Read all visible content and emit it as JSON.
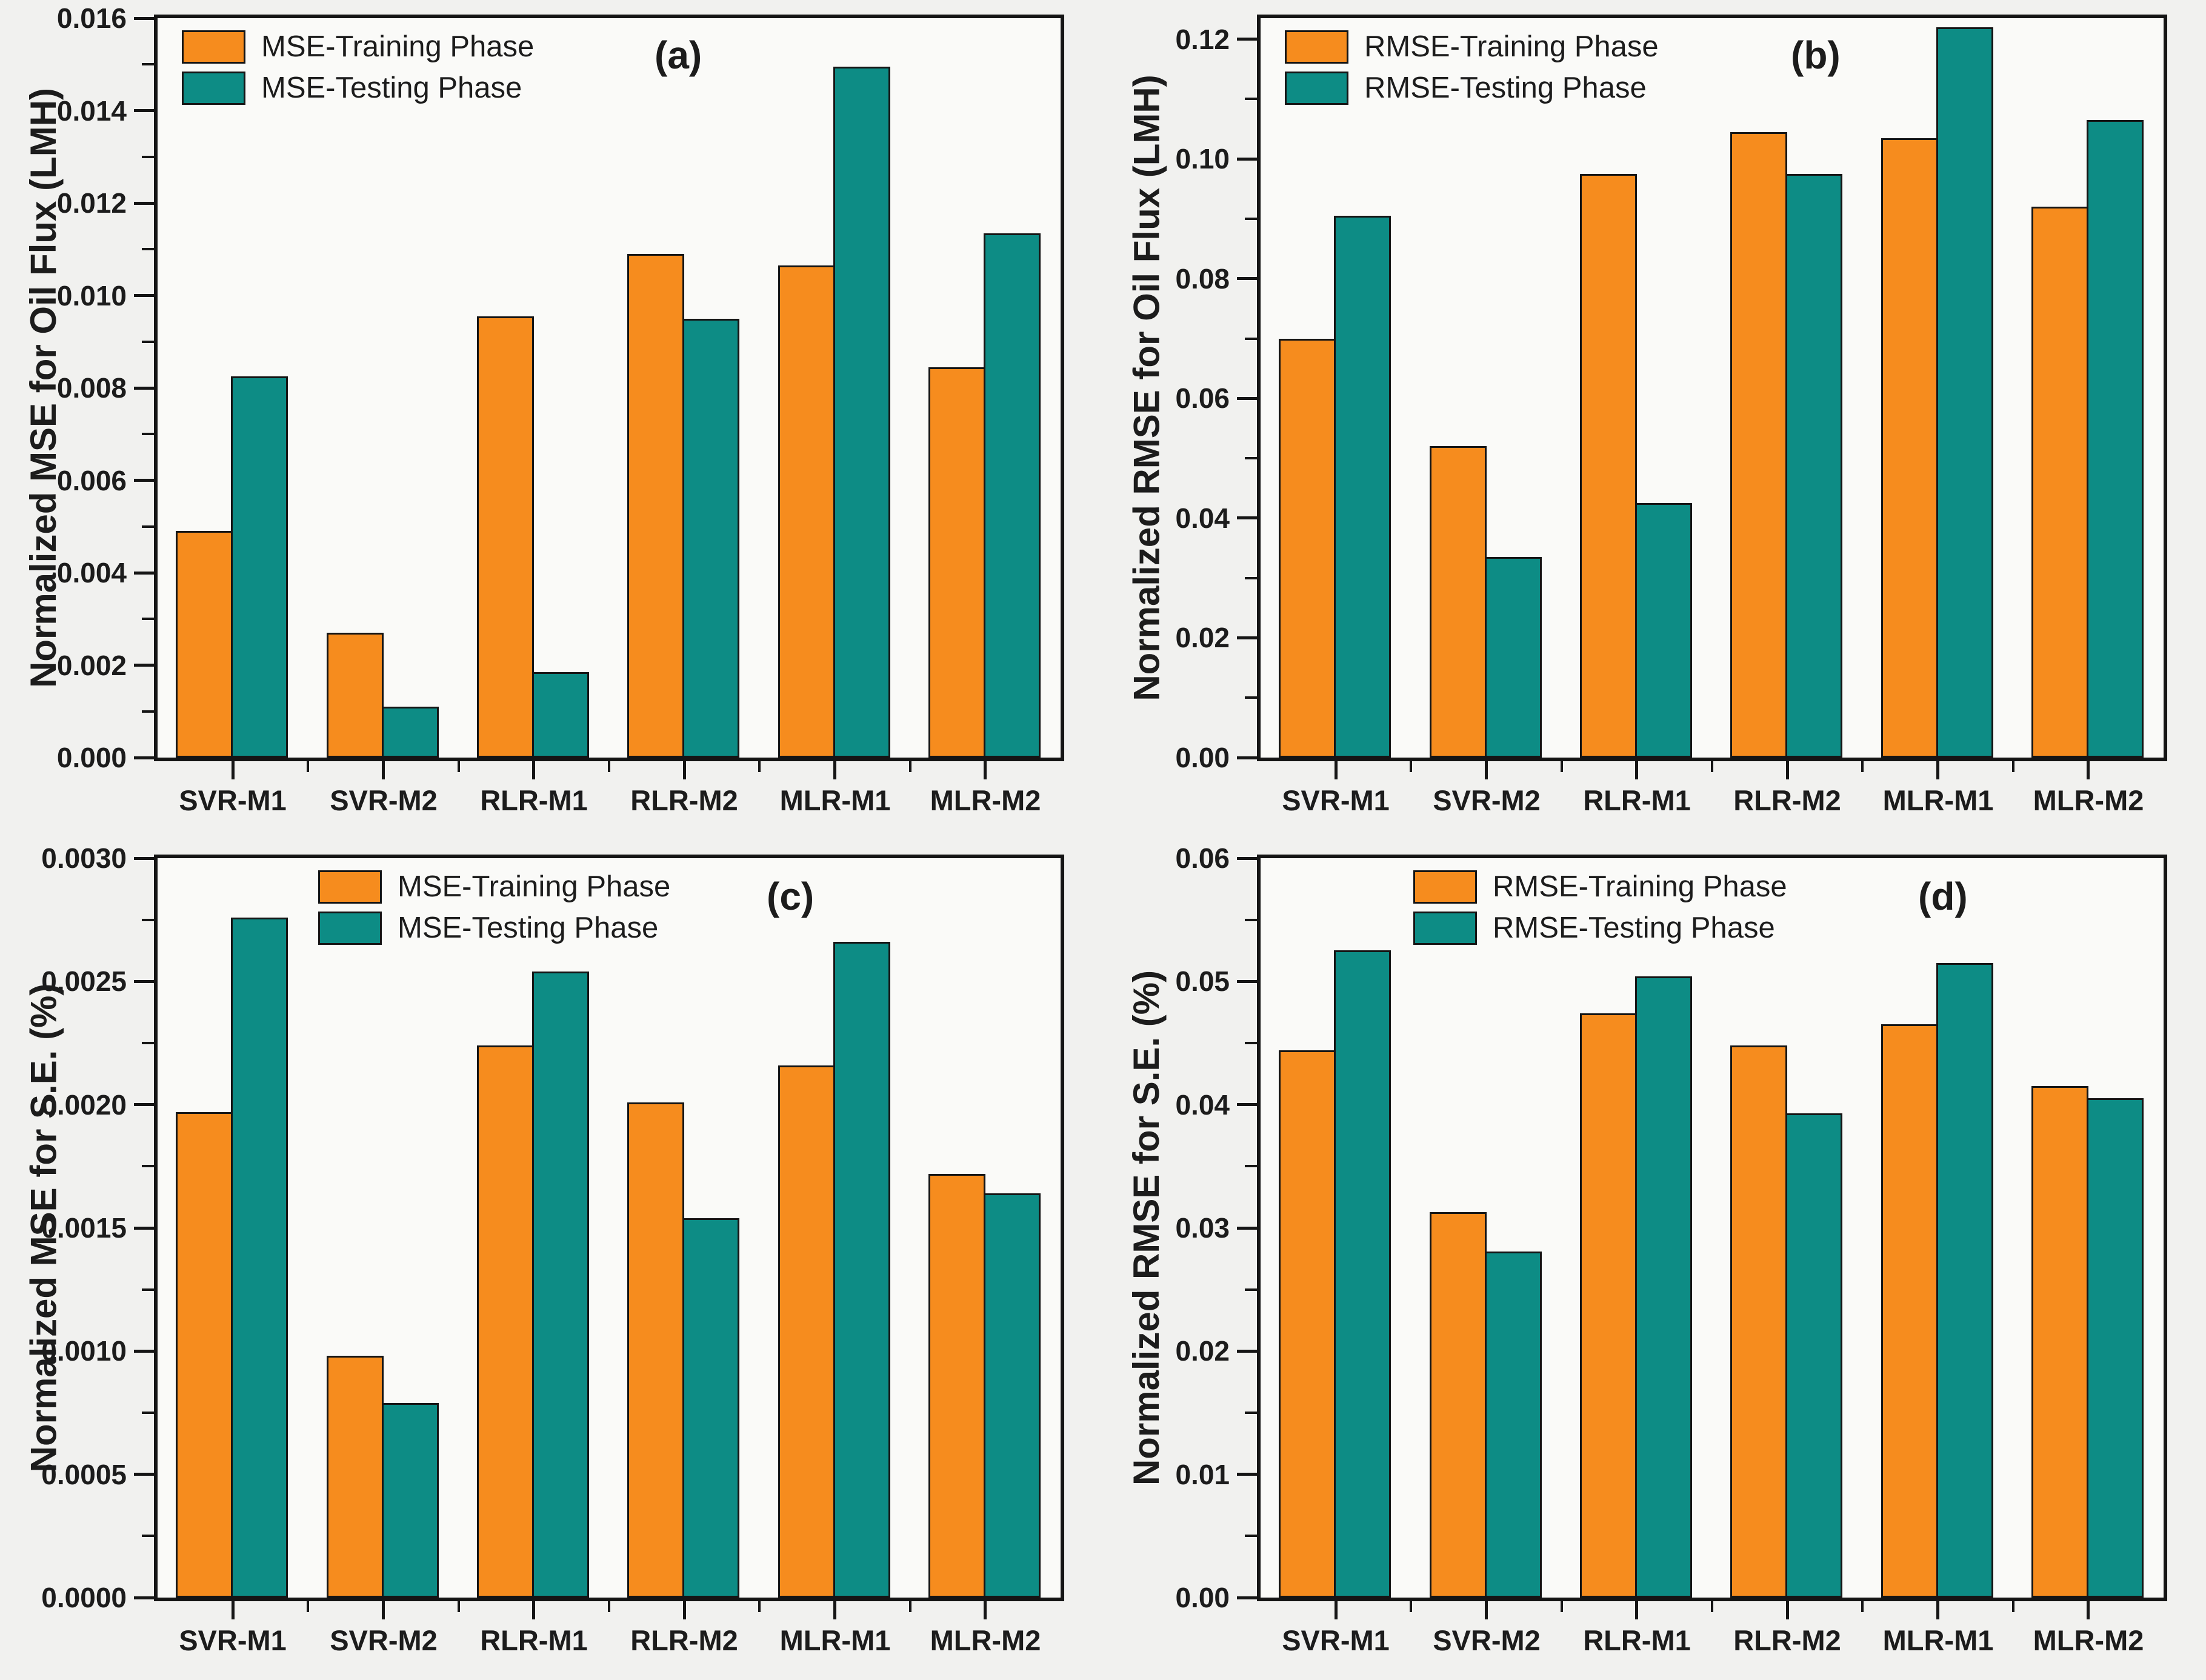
{
  "colors": {
    "training": "#F68C1E",
    "testing": "#0D8C85",
    "frame": "#151515",
    "text": "#1C1C1C",
    "page_bg": "#F1F1EF",
    "plot_bg": "#FAFAF8"
  },
  "chart_data": [
    {
      "type": "bar",
      "letter": "(a)",
      "ylabel": "Normalized MSE for Oil Flux (LMH)",
      "xlabel": "",
      "categories": [
        "SVR-M1",
        "SVR-M2",
        "RLR-M1",
        "RLR-M2",
        "MLR-M1",
        "MLR-M2"
      ],
      "series": [
        {
          "name": "MSE-Training Phase",
          "phase": "training",
          "values": [
            0.0049,
            0.0027,
            0.00955,
            0.0109,
            0.01065,
            0.00845
          ]
        },
        {
          "name": "MSE-Testing Phase",
          "phase": "testing",
          "values": [
            0.00825,
            0.0011,
            0.00185,
            0.0095,
            0.01495,
            0.01135
          ]
        }
      ],
      "ytick_labels": [
        "0.000",
        "0.002",
        "0.004",
        "0.006",
        "0.008",
        "0.010",
        "0.012",
        "0.014",
        "0.016"
      ],
      "ylim": [
        0,
        0.016
      ],
      "render_ymax": 0.016,
      "yminor_step": 0.001,
      "grid": false,
      "legend_position": "top-left"
    },
    {
      "type": "bar",
      "letter": "(b)",
      "ylabel": "Normalized RMSE for Oil Flux (LMH)",
      "xlabel": "",
      "categories": [
        "SVR-M1",
        "SVR-M2",
        "RLR-M1",
        "RLR-M2",
        "MLR-M1",
        "MLR-M2"
      ],
      "series": [
        {
          "name": "RMSE-Training Phase",
          "phase": "training",
          "values": [
            0.07,
            0.052,
            0.0975,
            0.1045,
            0.1035,
            0.092
          ]
        },
        {
          "name": "RMSE-Testing Phase",
          "phase": "testing",
          "values": [
            0.0905,
            0.0335,
            0.0425,
            0.0975,
            0.122,
            0.1065
          ]
        }
      ],
      "ytick_labels": [
        "0.00",
        "0.02",
        "0.04",
        "0.06",
        "0.08",
        "0.10",
        "0.12"
      ],
      "ylim": [
        0,
        0.12
      ],
      "render_ymax": 0.1235,
      "yminor_step": 0.01,
      "grid": false,
      "legend_position": "top-left"
    },
    {
      "type": "bar",
      "letter": "(c)",
      "ylabel": "Normalized MSE for S.E. (%)",
      "xlabel": "",
      "categories": [
        "SVR-M1",
        "SVR-M2",
        "RLR-M1",
        "RLR-M2",
        "MLR-M1",
        "MLR-M2"
      ],
      "series": [
        {
          "name": "MSE-Training Phase",
          "phase": "training",
          "values": [
            0.00197,
            0.00098,
            0.00224,
            0.00201,
            0.00216,
            0.00172
          ]
        },
        {
          "name": "MSE-Testing Phase",
          "phase": "testing",
          "values": [
            0.00276,
            0.00079,
            0.00254,
            0.00154,
            0.00266,
            0.00164
          ]
        }
      ],
      "ytick_labels": [
        "0.0000",
        "0.0005",
        "0.0010",
        "0.0015",
        "0.0020",
        "0.0025",
        "0.0030"
      ],
      "ylim": [
        0,
        0.003
      ],
      "render_ymax": 0.003,
      "yminor_step": 0.00025,
      "grid": false,
      "legend_position": "top-left-indented"
    },
    {
      "type": "bar",
      "letter": "(d)",
      "ylabel": "Normalized RMSE for S.E. (%)",
      "xlabel": "",
      "categories": [
        "SVR-M1",
        "SVR-M2",
        "RLR-M1",
        "RLR-M2",
        "MLR-M1",
        "MLR-M2"
      ],
      "series": [
        {
          "name": "RMSE-Training Phase",
          "phase": "training",
          "values": [
            0.0444,
            0.0313,
            0.0474,
            0.0448,
            0.0465,
            0.0415
          ]
        },
        {
          "name": "RMSE-Testing Phase",
          "phase": "testing",
          "values": [
            0.0525,
            0.0281,
            0.0504,
            0.0393,
            0.0515,
            0.0405
          ]
        }
      ],
      "ytick_labels": [
        "0.00",
        "0.01",
        "0.02",
        "0.03",
        "0.04",
        "0.05",
        "0.06"
      ],
      "ylim": [
        0,
        0.06
      ],
      "render_ymax": 0.06,
      "yminor_step": 0.005,
      "grid": false,
      "legend_position": "top-left-indented"
    }
  ]
}
